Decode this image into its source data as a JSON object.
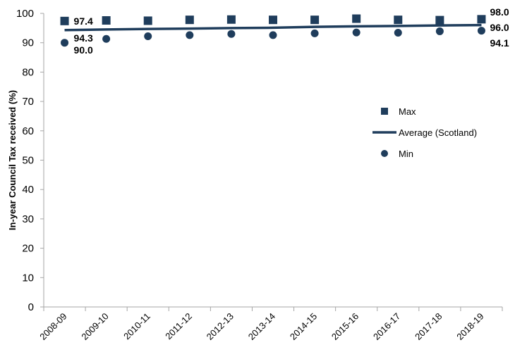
{
  "chart_data": {
    "type": "line",
    "ylabel": "In-year Council Tax received (%)",
    "xlabel": "",
    "ylim": [
      0,
      100
    ],
    "yticks": [
      0,
      10,
      20,
      30,
      40,
      50,
      60,
      70,
      80,
      90,
      100
    ],
    "categories": [
      "2008-09",
      "2009-10",
      "2010-11",
      "2011-12",
      "2012-13",
      "2013-14",
      "2014-15",
      "2015-16",
      "2016-17",
      "2017-18",
      "2018-19"
    ],
    "series": [
      {
        "name": "Max",
        "marker": "square",
        "values": [
          97.4,
          97.6,
          97.5,
          97.8,
          97.9,
          97.8,
          97.8,
          98.2,
          97.8,
          97.7,
          98.0
        ]
      },
      {
        "name": "Average (Scotland)",
        "marker": "line",
        "values": [
          94.3,
          94.5,
          94.7,
          94.8,
          95.0,
          95.1,
          95.4,
          95.6,
          95.7,
          95.9,
          96.0
        ]
      },
      {
        "name": "Min",
        "marker": "circle",
        "values": [
          90.0,
          91.3,
          92.2,
          92.6,
          93.0,
          92.6,
          93.2,
          93.5,
          93.4,
          93.9,
          94.1
        ]
      }
    ],
    "data_labels": {
      "first": {
        "max": "97.4",
        "average": "94.3",
        "min": "90.0"
      },
      "last": {
        "max": "98.0",
        "average": "96.0",
        "min": "94.1"
      }
    },
    "grid": false,
    "legend_position": "right",
    "colors": {
      "series": "#1f3d5c",
      "axis": "#a6a6a6"
    }
  }
}
